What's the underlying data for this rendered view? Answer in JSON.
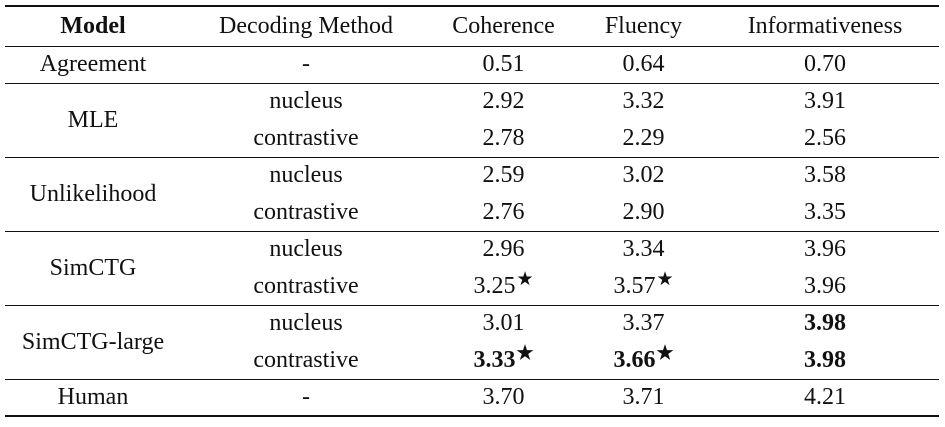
{
  "headers": {
    "model": "Model",
    "decoding": "Decoding Method",
    "coherence": "Coherence",
    "fluency": "Fluency",
    "informativeness": "Informativeness"
  },
  "star": "★",
  "agreement": {
    "model": "Agreement",
    "decoding": "-",
    "coherence": "0.51",
    "fluency": "0.64",
    "informativeness": "0.70"
  },
  "groups": [
    {
      "model": "MLE",
      "rows": [
        {
          "decoding": "nucleus",
          "coherence": "2.92",
          "fluency": "3.32",
          "informativeness": "3.91"
        },
        {
          "decoding": "contrastive",
          "coherence": "2.78",
          "fluency": "2.29",
          "informativeness": "2.56"
        }
      ]
    },
    {
      "model": "Unlikelihood",
      "rows": [
        {
          "decoding": "nucleus",
          "coherence": "2.59",
          "fluency": "3.02",
          "informativeness": "3.58"
        },
        {
          "decoding": "contrastive",
          "coherence": "2.76",
          "fluency": "2.90",
          "informativeness": "3.35"
        }
      ]
    },
    {
      "model": "SimCTG",
      "rows": [
        {
          "decoding": "nucleus",
          "coherence": "2.96",
          "fluency": "3.34",
          "informativeness": "3.96"
        },
        {
          "decoding": "contrastive",
          "coherence": "3.25",
          "fluency": "3.57",
          "informativeness": "3.96"
        }
      ]
    },
    {
      "model": "SimCTG-large",
      "rows": [
        {
          "decoding": "nucleus",
          "coherence": "3.01",
          "fluency": "3.37",
          "informativeness": "3.98"
        },
        {
          "decoding": "contrastive",
          "coherence": "3.33",
          "fluency": "3.66",
          "informativeness": "3.98"
        }
      ]
    }
  ],
  "human": {
    "model": "Human",
    "decoding": "-",
    "coherence": "3.70",
    "fluency": "3.71",
    "informativeness": "4.21"
  }
}
